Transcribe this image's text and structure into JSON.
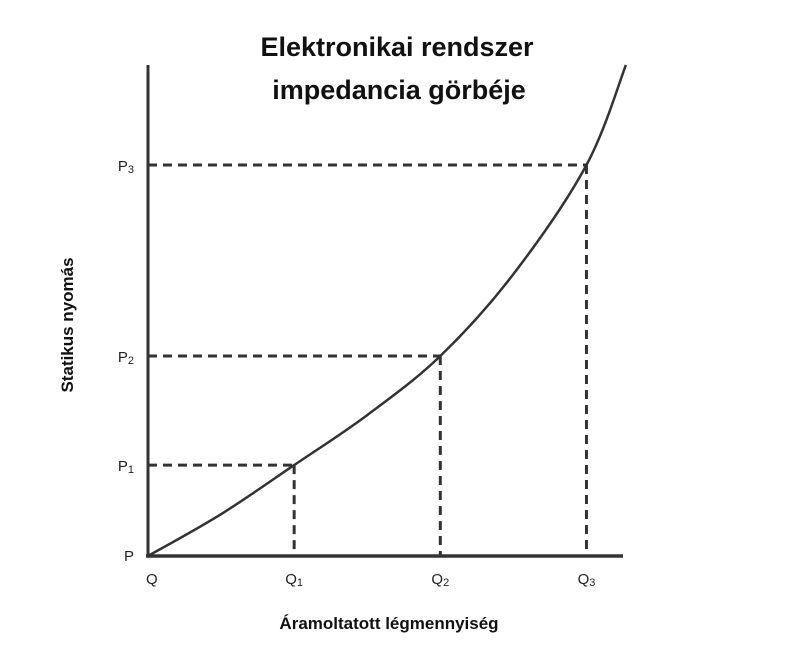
{
  "chart_data": {
    "type": "line",
    "title": [
      "Elektronikai rendszer",
      "impedancia görbéje"
    ],
    "xlabel": "Áramoltatott légmennyiség",
    "ylabel": "Statikus nyomás",
    "origin_x_label": "Q",
    "origin_y_label": "P",
    "x_ticks": [
      {
        "label": "Q",
        "sub": "1",
        "value": 1
      },
      {
        "label": "Q",
        "sub": "2",
        "value": 2
      },
      {
        "label": "Q",
        "sub": "3",
        "value": 3
      }
    ],
    "y_ticks": [
      {
        "label": "P",
        "sub": "1",
        "value": 1
      },
      {
        "label": "P",
        "sub": "2",
        "value": 2.2
      },
      {
        "label": "P",
        "sub": "3",
        "value": 4.3
      }
    ],
    "xlim": [
      0,
      3.25
    ],
    "ylim": [
      0,
      5.4
    ],
    "curve": {
      "x": [
        0,
        0.5,
        1,
        1.5,
        2,
        2.5,
        3,
        3.27
      ],
      "y": [
        0,
        0.46,
        1,
        1.55,
        2.2,
        3.1,
        4.3,
        5.4
      ]
    },
    "marked_points": [
      {
        "x": 1,
        "y": 1
      },
      {
        "x": 2,
        "y": 2.2
      },
      {
        "x": 3,
        "y": 4.3
      }
    ],
    "grid": false,
    "legend": "none",
    "colors": {
      "curve": "#333333",
      "axis": "#333333",
      "guides": "#333333"
    }
  }
}
